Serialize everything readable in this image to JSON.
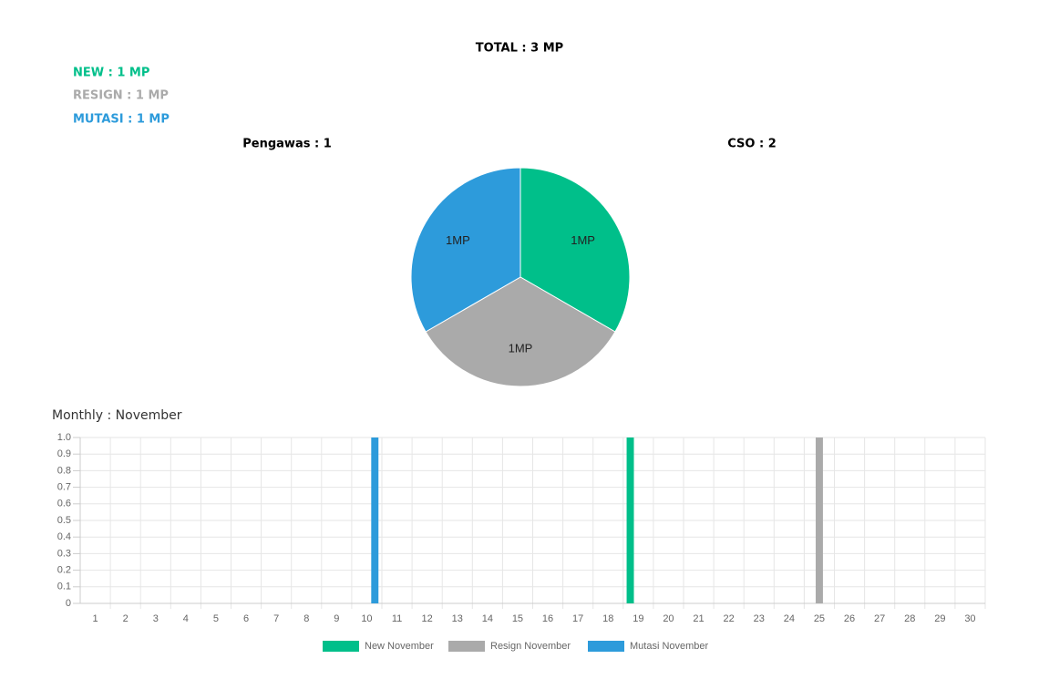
{
  "header": {
    "total": "TOTAL : 3 MP",
    "new": "NEW : 1 MP",
    "resign": "RESIGN : 1 MP",
    "mutasi": "MUTASI : 1 MP",
    "pengawas": "Pengawas : 1",
    "cso": "CSO : 2"
  },
  "chart_data": [
    {
      "type": "pie",
      "values": [
        1,
        1,
        1
      ],
      "value_labels": [
        "1MP",
        "1MP",
        "1MP"
      ],
      "colors": [
        "#00bf8a",
        "#aaaaaa",
        "#2d9bdb"
      ]
    },
    {
      "type": "bar",
      "title": "Monthly : November",
      "categories": [
        "1",
        "2",
        "3",
        "4",
        "5",
        "6",
        "7",
        "8",
        "9",
        "10",
        "11",
        "12",
        "13",
        "14",
        "15",
        "16",
        "17",
        "18",
        "19",
        "20",
        "21",
        "22",
        "23",
        "24",
        "25",
        "26",
        "27",
        "28",
        "29",
        "30"
      ],
      "series": [
        {
          "name": "New November",
          "color": "#00bf8a",
          "values": [
            0,
            0,
            0,
            0,
            0,
            0,
            0,
            0,
            0,
            0,
            0,
            0,
            0,
            0,
            0,
            0,
            0,
            0,
            1,
            0,
            0,
            0,
            0,
            0,
            0,
            0,
            0,
            0,
            0,
            0
          ]
        },
        {
          "name": "Resign November",
          "color": "#aaaaaa",
          "values": [
            0,
            0,
            0,
            0,
            0,
            0,
            0,
            0,
            0,
            0,
            0,
            0,
            0,
            0,
            0,
            0,
            0,
            0,
            0,
            0,
            0,
            0,
            0,
            0,
            1,
            0,
            0,
            0,
            0,
            0
          ]
        },
        {
          "name": "Mutasi November",
          "color": "#2d9bdb",
          "values": [
            0,
            0,
            0,
            0,
            0,
            0,
            0,
            0,
            0,
            1,
            0,
            0,
            0,
            0,
            0,
            0,
            0,
            0,
            0,
            0,
            0,
            0,
            0,
            0,
            0,
            0,
            0,
            0,
            0,
            0
          ]
        }
      ],
      "ylim": [
        0,
        1
      ],
      "yticks": [
        0,
        0.1,
        0.2,
        0.3,
        0.4,
        0.5,
        0.6,
        0.7,
        0.8,
        0.9,
        {
          "value": 1,
          "label": "1.0"
        }
      ],
      "grid": true,
      "legend": "bottom"
    }
  ]
}
